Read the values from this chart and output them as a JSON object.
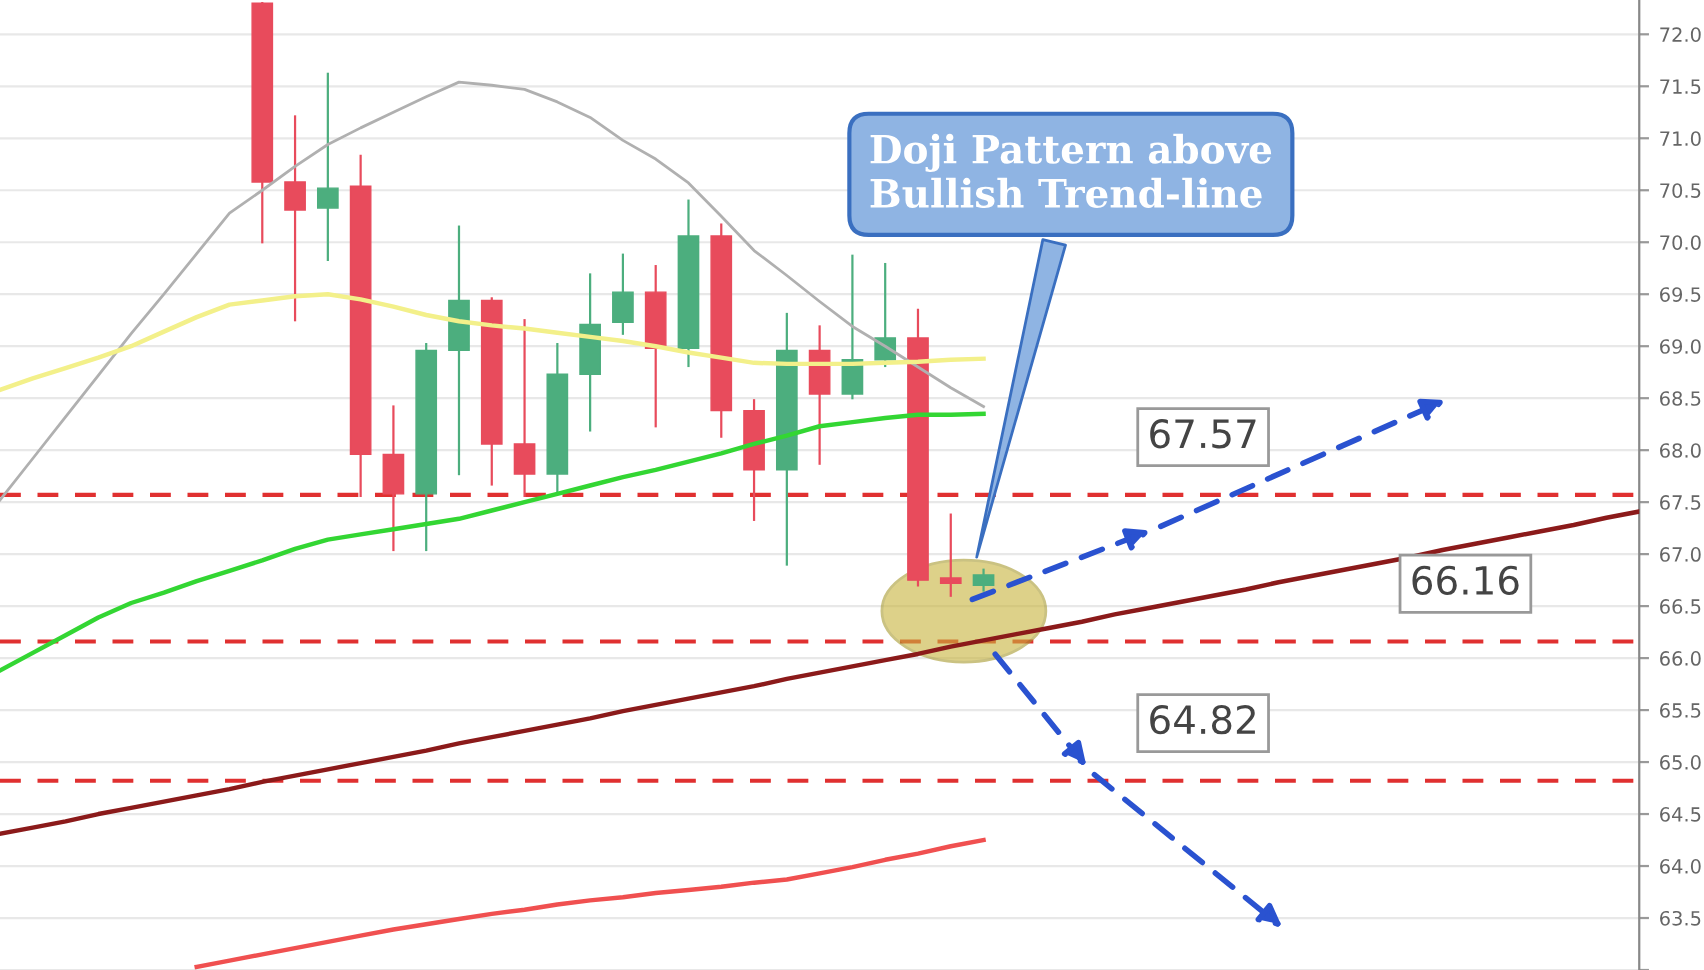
{
  "chart_data": {
    "type": "candlestick",
    "categories": [
      null,
      null,
      null,
      null,
      null,
      null,
      null,
      null,
      null,
      null,
      null,
      null,
      null,
      null,
      null,
      null,
      null,
      null,
      null,
      null,
      null,
      null,
      null,
      null,
      null,
      null,
      null,
      null,
      null,
      null,
      null,
      null,
      null,
      null,
      null,
      null,
      null,
      null,
      null,
      null,
      null,
      null,
      null,
      null,
      null,
      null,
      null,
      null,
      null,
      null,
      null
    ],
    "ohlc": [
      null,
      null,
      null,
      null,
      null,
      null,
      null,
      null,
      [
        72.3,
        72.3,
        70.0,
        70.58
      ],
      [
        70.58,
        71.21,
        69.25,
        70.31
      ],
      [
        70.33,
        71.62,
        69.83,
        70.52
      ],
      [
        70.54,
        70.83,
        67.56,
        67.96
      ],
      [
        67.96,
        68.42,
        67.04,
        67.58
      ],
      [
        67.58,
        69.02,
        67.04,
        68.96
      ],
      [
        68.96,
        70.15,
        67.77,
        69.44
      ],
      [
        69.44,
        69.46,
        67.67,
        68.06
      ],
      [
        68.06,
        69.25,
        67.56,
        67.77
      ],
      [
        67.77,
        69.02,
        67.58,
        68.73
      ],
      [
        68.73,
        69.69,
        68.19,
        69.21
      ],
      [
        69.23,
        69.88,
        69.12,
        69.52
      ],
      [
        69.52,
        69.77,
        68.23,
        68.98
      ],
      [
        68.98,
        70.4,
        68.81,
        70.06
      ],
      [
        70.06,
        70.17,
        68.13,
        68.38
      ],
      [
        68.38,
        68.48,
        67.33,
        67.81
      ],
      [
        67.81,
        69.31,
        66.9,
        68.96
      ],
      [
        68.96,
        69.19,
        67.87,
        68.54
      ],
      [
        68.54,
        69.87,
        68.5,
        68.87
      ],
      [
        68.87,
        69.79,
        68.81,
        69.08
      ],
      [
        69.08,
        69.35,
        66.7,
        66.75
      ],
      [
        66.77,
        67.38,
        66.6,
        66.72
      ],
      [
        66.7,
        66.85,
        66.65,
        66.8
      ],
      null,
      null,
      null,
      null,
      null,
      null,
      null,
      null,
      null,
      null,
      null,
      null,
      null,
      null,
      null,
      null,
      null,
      null,
      null,
      null
    ],
    "colors": [
      null,
      null,
      null,
      null,
      null,
      null,
      null,
      null,
      "#e84b5c",
      "#e84b5c",
      "#4cae7e",
      "#e84b5c",
      "#e84b5c",
      "#4cae7e",
      "#4cae7e",
      "#e84b5c",
      "#e84b5c",
      "#4cae7e",
      "#4cae7e",
      "#4cae7e",
      "#e84b5c",
      "#4cae7e",
      "#e84b5c",
      "#e84b5c",
      "#4cae7e",
      "#e84b5c",
      "#4cae7e",
      "#4cae7e",
      "#e84b5c",
      "#e84b5c",
      "#4cae7e",
      null,
      null,
      null,
      null,
      null,
      null,
      null,
      null,
      null,
      null,
      null,
      null,
      null,
      null,
      null,
      null,
      null,
      null,
      null,
      null
    ],
    "series": [
      {
        "type": "line",
        "color": "#b0b0b0",
        "values": [
          67.52,
          67.92,
          68.32,
          68.72,
          69.12,
          69.5,
          69.89,
          70.28,
          70.5,
          70.73,
          70.94,
          71.1,
          71.25,
          71.4,
          71.54,
          71.51,
          71.47,
          71.35,
          71.2,
          70.98,
          70.8,
          70.57,
          70.25,
          69.92,
          69.68,
          69.43,
          69.19,
          69.0,
          68.8,
          68.6,
          68.42,
          null,
          null,
          null,
          null,
          null,
          null,
          null,
          null,
          null,
          null,
          null,
          null,
          null,
          null,
          null,
          null,
          null,
          null,
          null,
          null
        ]
      },
      {
        "type": "line",
        "color": "#f3f08a",
        "values": [
          68.58,
          68.69,
          68.79,
          68.89,
          69.0,
          69.14,
          69.28,
          69.4,
          69.44,
          69.48,
          69.5,
          69.45,
          69.38,
          69.3,
          69.24,
          69.2,
          69.17,
          69.13,
          69.09,
          69.05,
          69.0,
          68.94,
          68.89,
          68.84,
          68.83,
          68.83,
          68.83,
          68.84,
          68.85,
          68.87,
          68.88,
          null,
          null,
          null,
          null,
          null,
          null,
          null,
          null,
          null,
          null,
          null,
          null,
          null,
          null,
          null,
          null,
          null,
          null,
          null,
          null
        ]
      },
      {
        "type": "line",
        "color": "#33d633",
        "values": [
          65.88,
          66.05,
          66.22,
          66.39,
          66.53,
          66.63,
          66.74,
          66.84,
          66.94,
          67.05,
          67.14,
          67.19,
          67.24,
          67.29,
          67.34,
          67.42,
          67.5,
          67.58,
          67.66,
          67.74,
          67.81,
          67.89,
          67.97,
          68.06,
          68.14,
          68.23,
          68.27,
          68.31,
          68.34,
          68.34,
          68.35,
          null,
          null,
          null,
          null,
          null,
          null,
          null,
          null,
          null,
          null,
          null,
          null,
          null,
          null,
          null,
          null,
          null,
          null,
          null,
          null
        ]
      },
      {
        "type": "line",
        "color": "#f05050",
        "values": [
          null,
          null,
          null,
          null,
          null,
          null,
          63.03,
          63.09,
          63.15,
          63.21,
          63.27,
          63.33,
          63.39,
          63.44,
          63.49,
          63.54,
          63.58,
          63.63,
          63.67,
          63.7,
          63.74,
          63.77,
          63.8,
          63.84,
          63.87,
          63.93,
          63.99,
          64.06,
          64.12,
          64.19,
          64.25,
          null,
          null,
          null,
          null,
          null,
          null,
          null,
          null,
          null,
          null,
          null,
          null,
          null,
          null,
          null,
          null,
          null,
          null,
          null,
          null
        ]
      },
      {
        "type": "line",
        "color": "#8b1a1a",
        "values": [
          64.31,
          64.37,
          64.43,
          64.5,
          64.56,
          64.62,
          64.68,
          64.74,
          64.81,
          64.87,
          64.93,
          64.99,
          65.05,
          65.11,
          65.18,
          65.24,
          65.3,
          65.36,
          65.42,
          65.49,
          65.55,
          65.61,
          65.67,
          65.73,
          65.8,
          65.86,
          65.92,
          65.98,
          66.04,
          66.11,
          66.17,
          66.23,
          66.29,
          66.35,
          66.42,
          66.48,
          66.54,
          66.6,
          66.66,
          66.73,
          66.79,
          66.85,
          66.91,
          66.97,
          67.04,
          67.1,
          67.16,
          67.22,
          67.28,
          67.35,
          67.41
        ]
      }
    ],
    "ref_lines": [
      {
        "axis": "y",
        "value": 67.57,
        "label": "67.57",
        "color": "#e03030",
        "line_style": "dashed"
      },
      {
        "axis": "y",
        "value": 66.16,
        "label": "66.16",
        "color": "#e03030",
        "line_style": "dashed"
      },
      {
        "axis": "y",
        "value": 64.82,
        "label": "64.82",
        "color": "#e03030",
        "line_style": "dashed"
      }
    ],
    "annotations": [
      "Doji Pattern above\nBullish Trend-line"
    ],
    "ylim": [
      63.0,
      72.33
    ],
    "yticks": [
      {
        "value": 63,
        "label": null
      },
      {
        "value": 63.5,
        "label": "63.5"
      },
      {
        "value": 64,
        "label": "64.0"
      },
      {
        "value": 64.5,
        "label": "64.5"
      },
      {
        "value": 65,
        "label": "65.0"
      },
      {
        "value": 65.5,
        "label": "65.5"
      },
      {
        "value": 66,
        "label": "66.0"
      },
      {
        "value": 66.5,
        "label": "66.5"
      },
      {
        "value": 67,
        "label": "67.0"
      },
      {
        "value": 67.5,
        "label": "67.5"
      },
      {
        "value": 68,
        "label": "68.0"
      },
      {
        "value": 68.5,
        "label": "68.5"
      },
      {
        "value": 69,
        "label": "69.0"
      },
      {
        "value": 69.5,
        "label": "69.5"
      },
      {
        "value": 70,
        "label": "70.0"
      },
      {
        "value": 70.5,
        "label": "70.5"
      },
      {
        "value": 71,
        "label": "71.0"
      },
      {
        "value": 71.5,
        "label": "71.5"
      },
      {
        "value": 72,
        "label": "72.0"
      }
    ],
    "tick_labels": "y",
    "grid": "y"
  }
}
